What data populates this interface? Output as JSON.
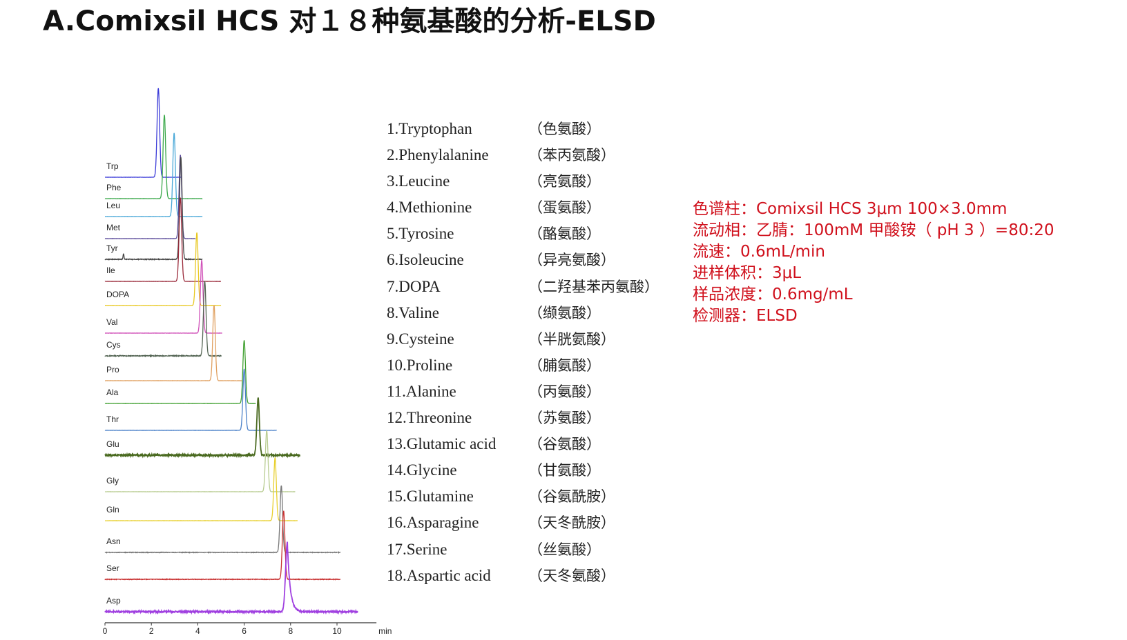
{
  "title": "A.Comixsil HCS 对１８种氨基酸的分析-ELSD",
  "legend": [
    {
      "en": "1.Tryptophan",
      "cn": "（色氨酸）"
    },
    {
      "en": "2.Phenylalanine",
      "cn": "（苯丙氨酸）"
    },
    {
      "en": "3.Leucine",
      "cn": "（亮氨酸）"
    },
    {
      "en": "4.Methionine",
      "cn": "（蛋氨酸）"
    },
    {
      "en": "5.Tyrosine",
      "cn": "（酪氨酸）"
    },
    {
      "en": "6.Isoleucine",
      "cn": "（异亮氨酸）"
    },
    {
      "en": "7.DOPA",
      "cn": "（二羟基苯丙氨酸）"
    },
    {
      "en": "8.Valine",
      "cn": "（缬氨酸）"
    },
    {
      "en": "9.Cysteine",
      "cn": "（半胱氨酸）"
    },
    {
      "en": "10.Proline",
      "cn": "（脯氨酸）"
    },
    {
      "en": "11.Alanine",
      "cn": "（丙氨酸）"
    },
    {
      "en": "12.Threonine",
      "cn": "（苏氨酸）"
    },
    {
      "en": "13.Glutamic acid",
      "cn": "（谷氨酸）"
    },
    {
      "en": "14.Glycine",
      "cn": "（甘氨酸）"
    },
    {
      "en": "15.Glutamine",
      "cn": "（谷氨酰胺）"
    },
    {
      "en": "16.Asparagine",
      "cn": "（天冬酰胺）"
    },
    {
      "en": "17.Serine",
      "cn": "（丝氨酸）"
    },
    {
      "en": "18.Aspartic acid",
      "cn": "（天冬氨酸）"
    }
  ],
  "conditions": [
    "色谱柱：Comixsil HCS 3μm 100×3.0mm",
    "流动相：乙腈：100mM 甲酸铵（ pH 3 ）=80:20",
    "流速：0.6mL/min",
    "进样体积：3μL",
    "样品浓度：0.6mg/mL",
    "检测器：ELSD"
  ],
  "colors": {
    "conditions_text": "#d0101c"
  },
  "chart_data": {
    "type": "line",
    "subtype": "stacked chromatograms",
    "xlabel": "min",
    "xlim": [
      0,
      11.7
    ],
    "xticks": [
      0,
      2,
      4,
      6,
      8,
      10
    ],
    "ylabel": "",
    "grid": false,
    "series": [
      {
        "name": "Trp",
        "color": "#3a3ad8",
        "retention_min": 2.3,
        "relative_response": 1.0,
        "end_min": 3.3
      },
      {
        "name": "Phe",
        "color": "#3aa84a",
        "retention_min": 2.56,
        "relative_response": 0.94,
        "end_min": 4.2
      },
      {
        "name": "Leu",
        "color": "#4aa8d8",
        "retention_min": 2.98,
        "relative_response": 0.94,
        "end_min": 4.2
      },
      {
        "name": "Met",
        "color": "#5a4a9a",
        "retention_min": 3.25,
        "relative_response": 0.94,
        "end_min": 3.9
      },
      {
        "name": "Tyr",
        "color": "#444444",
        "retention_min": 3.27,
        "relative_response": 1.15,
        "end_min": 4.2
      },
      {
        "name": "Ile",
        "color": "#9a2a3a",
        "retention_min": 3.25,
        "relative_response": 0.94,
        "end_min": 5.0
      },
      {
        "name": "DOPA",
        "color": "#e8c820",
        "retention_min": 3.96,
        "relative_response": 0.82,
        "end_min": 5.0
      },
      {
        "name": "Val",
        "color": "#d050b8",
        "retention_min": 4.17,
        "relative_response": 0.82,
        "end_min": 5.05
      },
      {
        "name": "Cys",
        "color": "#556655",
        "retention_min": 4.3,
        "relative_response": 0.84,
        "end_min": 5.02
      },
      {
        "name": "Pro",
        "color": "#e0a060",
        "retention_min": 4.7,
        "relative_response": 0.85,
        "end_min": 5.9
      },
      {
        "name": "Ala",
        "color": "#40a030",
        "retention_min": 6.0,
        "relative_response": 0.71,
        "end_min": 6.5
      },
      {
        "name": "Thr",
        "color": "#4a80c8",
        "retention_min": 6.0,
        "relative_response": 0.69,
        "end_min": 7.4
      },
      {
        "name": "Glu",
        "color": "#4a6a20",
        "retention_min": 6.6,
        "relative_response": 0.64,
        "end_min": 8.4
      },
      {
        "name": "Gly",
        "color": "#b8cc90",
        "retention_min": 6.97,
        "relative_response": 0.69,
        "end_min": 8.2
      },
      {
        "name": "Gln",
        "color": "#e8d030",
        "retention_min": 7.33,
        "relative_response": 0.71,
        "end_min": 8.3
      },
      {
        "name": "Asn",
        "color": "#777777",
        "retention_min": 7.6,
        "relative_response": 0.75,
        "end_min": 10.15
      },
      {
        "name": "Ser",
        "color": "#c83030",
        "retention_min": 7.7,
        "relative_response": 0.77,
        "end_min": 10.15
      },
      {
        "name": "Asp",
        "color": "#a040e0",
        "retention_min": 7.86,
        "relative_response": 0.78,
        "end_min": 10.9
      }
    ]
  }
}
